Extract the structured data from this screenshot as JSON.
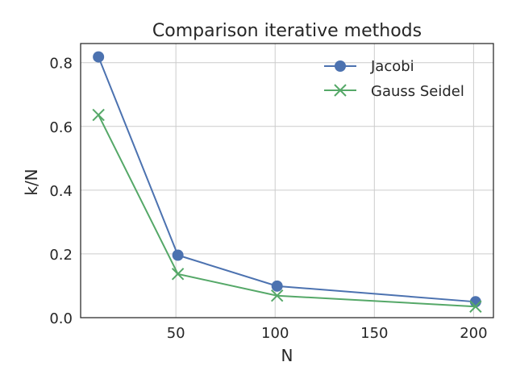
{
  "chart_data": {
    "type": "line",
    "title": "Comparison iterative methods",
    "xlabel": "N",
    "ylabel": "k/N",
    "xlim": [
      2,
      210
    ],
    "ylim": [
      0.0,
      0.86
    ],
    "xticks": [
      50,
      100,
      150,
      200
    ],
    "yticks": [
      0.0,
      0.2,
      0.4,
      0.6,
      0.8
    ],
    "xtick_labels": [
      "50",
      "100",
      "150",
      "200"
    ],
    "ytick_labels": [
      "0.0",
      "0.2",
      "0.4",
      "0.6",
      "0.8"
    ],
    "grid": true,
    "legend_position": "upper-right",
    "x": [
      11,
      51,
      101,
      201
    ],
    "series": [
      {
        "name": "Jacobi",
        "values": [
          0.818,
          0.196,
          0.099,
          0.0498
        ],
        "color": "#4c72b0",
        "marker": "circle"
      },
      {
        "name": "Gauss Seidel",
        "values": [
          0.636,
          0.137,
          0.069,
          0.0348
        ],
        "color": "#55a868",
        "marker": "x"
      }
    ]
  }
}
